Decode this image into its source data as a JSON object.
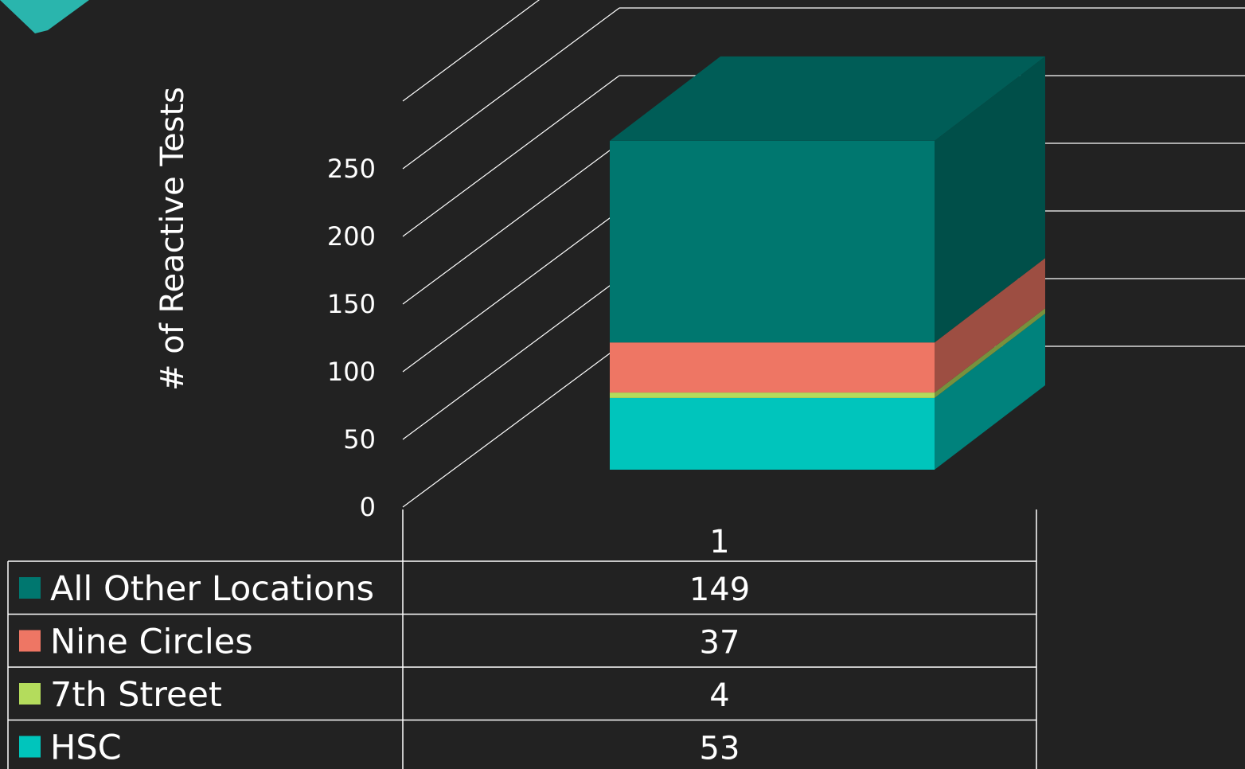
{
  "chart_data": {
    "type": "bar",
    "stacked": true,
    "three_d": true,
    "ylabel": "# of Reactive Tests",
    "xlabel": "",
    "ylim": [
      0,
      300
    ],
    "yticks": [
      0,
      50,
      100,
      150,
      200,
      250
    ],
    "categories": [
      "1"
    ],
    "series": [
      {
        "name": "HSC",
        "values": [
          53
        ],
        "color": "#00C5BC"
      },
      {
        "name": "7th Street",
        "values": [
          4
        ],
        "color": "#B4DC5C"
      },
      {
        "name": "Nine Circles",
        "values": [
          37
        ],
        "color": "#EE7664"
      },
      {
        "name": "All Other Locations",
        "values": [
          149
        ],
        "color": "#00776F"
      }
    ],
    "data_table_order": [
      "All Other Locations",
      "Nine Circles",
      "7th Street",
      "HSC"
    ],
    "grid": true,
    "legend": "data-table"
  }
}
